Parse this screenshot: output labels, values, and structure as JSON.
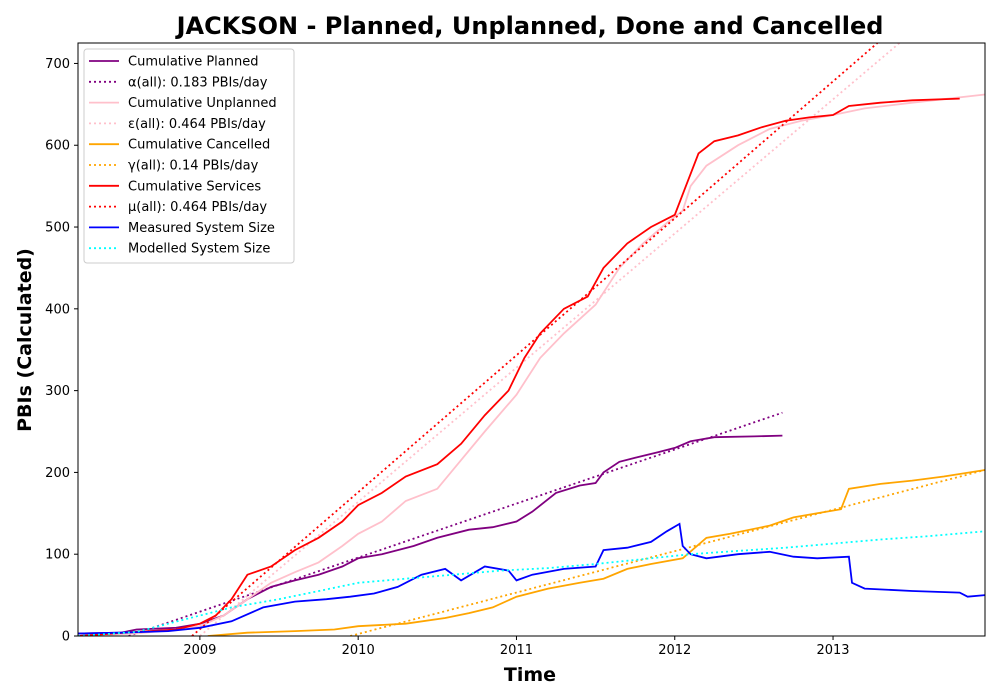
{
  "chart_data": {
    "type": "line",
    "title": "JACKSON - Planned, Unplanned, Done  and Cancelled",
    "xlabel": "Time",
    "ylabel": "PBIs (Calculated)",
    "xlim": [
      2008.23,
      2013.96
    ],
    "ylim": [
      0,
      725
    ],
    "xticks": [
      2009,
      2010,
      2011,
      2012,
      2013
    ],
    "yticks": [
      0,
      100,
      200,
      300,
      400,
      500,
      600,
      700
    ],
    "x_tick_labels": [
      "2009",
      "2010",
      "2011",
      "2012",
      "2013"
    ],
    "y_tick_labels": [
      "0",
      "100",
      "200",
      "300",
      "400",
      "500",
      "600",
      "700"
    ],
    "grid": false,
    "legend_position": "upper-left",
    "series": [
      {
        "name": "Cumulative Planned",
        "color": "#800080",
        "style": "solid",
        "points": [
          [
            2008.23,
            3
          ],
          [
            2008.5,
            4
          ],
          [
            2008.6,
            8
          ],
          [
            2008.85,
            10
          ],
          [
            2009.0,
            15
          ],
          [
            2009.15,
            25
          ],
          [
            2009.3,
            45
          ],
          [
            2009.45,
            60
          ],
          [
            2009.6,
            68
          ],
          [
            2009.75,
            75
          ],
          [
            2009.9,
            85
          ],
          [
            2010.0,
            95
          ],
          [
            2010.15,
            100
          ],
          [
            2010.35,
            110
          ],
          [
            2010.5,
            120
          ],
          [
            2010.7,
            130
          ],
          [
            2010.85,
            133
          ],
          [
            2011.0,
            140
          ],
          [
            2011.1,
            152
          ],
          [
            2011.25,
            175
          ],
          [
            2011.4,
            184
          ],
          [
            2011.5,
            187
          ],
          [
            2011.55,
            200
          ],
          [
            2011.65,
            213
          ],
          [
            2011.75,
            218
          ],
          [
            2011.9,
            225
          ],
          [
            2012.0,
            230
          ],
          [
            2012.1,
            238
          ],
          [
            2012.25,
            243
          ],
          [
            2012.5,
            244
          ],
          [
            2012.68,
            245
          ]
        ]
      },
      {
        "name": "α(all): 0.183 PBIs/day",
        "color": "#800080",
        "style": "dotted",
        "points": [
          [
            2008.55,
            0
          ],
          [
            2012.68,
            273
          ]
        ]
      },
      {
        "name": "Cumulative Unplanned",
        "color": "#ffc0cb",
        "style": "solid",
        "points": [
          [
            2008.23,
            0
          ],
          [
            2008.6,
            3
          ],
          [
            2008.85,
            8
          ],
          [
            2009.0,
            12
          ],
          [
            2009.15,
            25
          ],
          [
            2009.3,
            45
          ],
          [
            2009.45,
            65
          ],
          [
            2009.6,
            78
          ],
          [
            2009.75,
            90
          ],
          [
            2009.9,
            110
          ],
          [
            2010.0,
            125
          ],
          [
            2010.15,
            140
          ],
          [
            2010.3,
            165
          ],
          [
            2010.5,
            180
          ],
          [
            2010.65,
            215
          ],
          [
            2010.8,
            250
          ],
          [
            2011.0,
            295
          ],
          [
            2011.15,
            340
          ],
          [
            2011.3,
            370
          ],
          [
            2011.5,
            405
          ],
          [
            2011.65,
            450
          ],
          [
            2011.8,
            480
          ],
          [
            2011.95,
            505
          ],
          [
            2012.05,
            520
          ],
          [
            2012.1,
            550
          ],
          [
            2012.2,
            575
          ],
          [
            2012.4,
            600
          ],
          [
            2012.6,
            620
          ],
          [
            2012.8,
            630
          ],
          [
            2013.0,
            637
          ],
          [
            2013.2,
            645
          ],
          [
            2013.5,
            652
          ],
          [
            2013.96,
            662
          ]
        ]
      },
      {
        "name": "ε(all): 0.464 PBIs/day",
        "color": "#ffc0cb",
        "style": "dotted",
        "points": [
          [
            2009.0,
            0
          ],
          [
            2013.42,
            725
          ]
        ]
      },
      {
        "name": "Cumulative Cancelled",
        "color": "#ffa500",
        "style": "solid",
        "points": [
          [
            2009.05,
            0
          ],
          [
            2009.3,
            4
          ],
          [
            2009.6,
            6
          ],
          [
            2009.85,
            8
          ],
          [
            2010.0,
            12
          ],
          [
            2010.3,
            15
          ],
          [
            2010.55,
            22
          ],
          [
            2010.7,
            28
          ],
          [
            2010.85,
            35
          ],
          [
            2011.0,
            48
          ],
          [
            2011.2,
            58
          ],
          [
            2011.4,
            65
          ],
          [
            2011.55,
            70
          ],
          [
            2011.7,
            82
          ],
          [
            2011.85,
            88
          ],
          [
            2012.05,
            95
          ],
          [
            2012.2,
            120
          ],
          [
            2012.35,
            125
          ],
          [
            2012.6,
            135
          ],
          [
            2012.75,
            145
          ],
          [
            2012.9,
            150
          ],
          [
            2013.05,
            155
          ],
          [
            2013.1,
            180
          ],
          [
            2013.3,
            186
          ],
          [
            2013.5,
            190
          ],
          [
            2013.7,
            195
          ],
          [
            2013.96,
            203
          ]
        ]
      },
      {
        "name": "γ(all): 0.14 PBIs/day",
        "color": "#ffa500",
        "style": "dotted",
        "points": [
          [
            2009.95,
            0
          ],
          [
            2013.96,
            203
          ]
        ]
      },
      {
        "name": "Cumulative Services",
        "color": "#ff0000",
        "style": "solid",
        "points": [
          [
            2008.23,
            0
          ],
          [
            2008.6,
            5
          ],
          [
            2008.85,
            8
          ],
          [
            2009.0,
            15
          ],
          [
            2009.1,
            25
          ],
          [
            2009.2,
            45
          ],
          [
            2009.3,
            75
          ],
          [
            2009.45,
            85
          ],
          [
            2009.6,
            105
          ],
          [
            2009.75,
            120
          ],
          [
            2009.9,
            140
          ],
          [
            2010.0,
            160
          ],
          [
            2010.15,
            175
          ],
          [
            2010.3,
            195
          ],
          [
            2010.5,
            210
          ],
          [
            2010.65,
            235
          ],
          [
            2010.8,
            270
          ],
          [
            2010.95,
            300
          ],
          [
            2011.05,
            340
          ],
          [
            2011.15,
            370
          ],
          [
            2011.3,
            400
          ],
          [
            2011.45,
            415
          ],
          [
            2011.55,
            450
          ],
          [
            2011.7,
            480
          ],
          [
            2011.85,
            500
          ],
          [
            2012.0,
            515
          ],
          [
            2012.05,
            540
          ],
          [
            2012.15,
            590
          ],
          [
            2012.25,
            605
          ],
          [
            2012.4,
            612
          ],
          [
            2012.55,
            622
          ],
          [
            2012.7,
            630
          ],
          [
            2012.85,
            634
          ],
          [
            2013.0,
            637
          ],
          [
            2013.1,
            648
          ],
          [
            2013.3,
            652
          ],
          [
            2013.5,
            655
          ],
          [
            2013.8,
            657
          ]
        ]
      },
      {
        "name": "μ(all): 0.464 PBIs/day",
        "color": "#ff0000",
        "style": "dotted",
        "points": [
          [
            2008.95,
            0
          ],
          [
            2013.28,
            725
          ]
        ]
      },
      {
        "name": "Measured System Size",
        "color": "#0000ff",
        "style": "solid",
        "points": [
          [
            2008.23,
            3
          ],
          [
            2008.5,
            4
          ],
          [
            2008.8,
            6
          ],
          [
            2009.0,
            10
          ],
          [
            2009.2,
            18
          ],
          [
            2009.4,
            35
          ],
          [
            2009.6,
            42
          ],
          [
            2009.8,
            45
          ],
          [
            2009.95,
            48
          ],
          [
            2010.1,
            52
          ],
          [
            2010.25,
            60
          ],
          [
            2010.4,
            75
          ],
          [
            2010.55,
            82
          ],
          [
            2010.65,
            68
          ],
          [
            2010.8,
            85
          ],
          [
            2010.95,
            80
          ],
          [
            2011.0,
            68
          ],
          [
            2011.1,
            75
          ],
          [
            2011.3,
            82
          ],
          [
            2011.5,
            85
          ],
          [
            2011.55,
            105
          ],
          [
            2011.7,
            108
          ],
          [
            2011.85,
            115
          ],
          [
            2011.95,
            128
          ],
          [
            2012.03,
            137
          ],
          [
            2012.05,
            110
          ],
          [
            2012.1,
            100
          ],
          [
            2012.2,
            95
          ],
          [
            2012.4,
            100
          ],
          [
            2012.6,
            103
          ],
          [
            2012.75,
            97
          ],
          [
            2012.9,
            95
          ],
          [
            2013.1,
            97
          ],
          [
            2013.12,
            65
          ],
          [
            2013.2,
            58
          ],
          [
            2013.5,
            55
          ],
          [
            2013.8,
            53
          ],
          [
            2013.85,
            48
          ],
          [
            2013.96,
            50
          ]
        ]
      },
      {
        "name": "Modelled System Size",
        "color": "#00ffff",
        "style": "dotted",
        "points": [
          [
            2008.23,
            0
          ],
          [
            2008.6,
            5
          ],
          [
            2008.9,
            20
          ],
          [
            2009.2,
            35
          ],
          [
            2009.5,
            45
          ],
          [
            2009.8,
            57
          ],
          [
            2010.0,
            65
          ],
          [
            2010.3,
            70
          ],
          [
            2010.6,
            75
          ],
          [
            2010.9,
            80
          ],
          [
            2011.2,
            83
          ],
          [
            2011.5,
            88
          ],
          [
            2011.8,
            94
          ],
          [
            2012.1,
            100
          ],
          [
            2012.4,
            104
          ],
          [
            2012.7,
            108
          ],
          [
            2013.0,
            113
          ],
          [
            2013.3,
            118
          ],
          [
            2013.6,
            122
          ],
          [
            2013.96,
            128
          ]
        ]
      }
    ]
  }
}
